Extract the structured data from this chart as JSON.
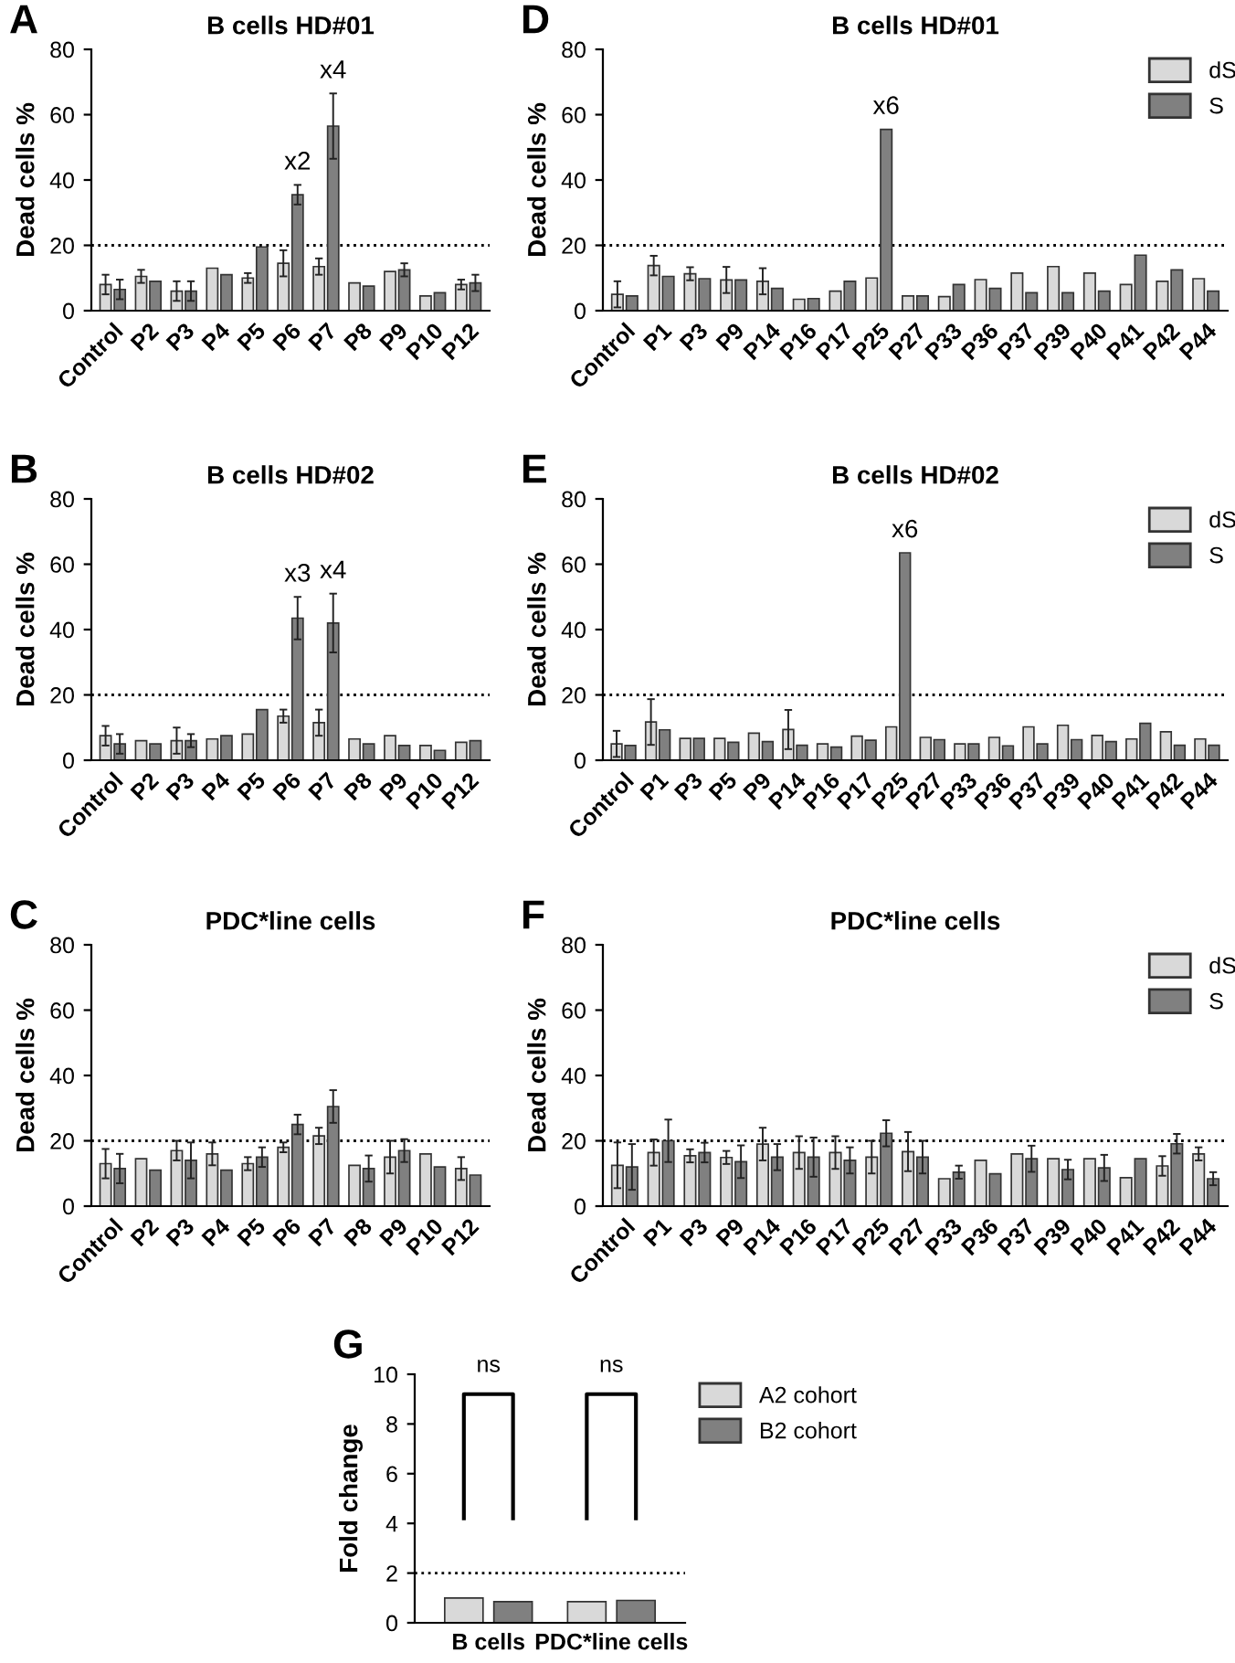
{
  "chart_data": [
    {
      "type": "bar",
      "title": "B cells HD#01",
      "ylabel": "Dead cells %",
      "annotations": [
        "A",
        {
          "text": "x2",
          "x": "P6",
          "y": 35.5
        },
        {
          "text": "x4",
          "x": "P7",
          "y": 56.5
        }
      ],
      "categories": [
        "Control",
        "P2",
        "P3",
        "P4",
        "P5",
        "P6",
        "P7",
        "P8",
        "P9",
        "P10",
        "P12"
      ],
      "series": [
        {
          "color": "#d9d9d9",
          "values": [
            8,
            10.5,
            6,
            13,
            10,
            14.5,
            13.5,
            8.5,
            12,
            4.5,
            8
          ],
          "errors": [
            3,
            2,
            3,
            null,
            1.5,
            4,
            2.5,
            null,
            null,
            null,
            1.5
          ]
        },
        {
          "color": "#808080",
          "values": [
            6.5,
            9,
            6,
            11,
            19.5,
            35.5,
            56.5,
            7.5,
            12.5,
            5.5,
            8.5
          ],
          "errors": [
            3,
            null,
            3,
            null,
            null,
            3,
            10,
            null,
            2,
            null,
            2.5
          ]
        }
      ],
      "ylim": [
        0,
        80
      ],
      "yticks": [
        0,
        20,
        40,
        60,
        80
      ],
      "ref_lines": [
        {
          "axis": "y",
          "value": 20,
          "line_style": "dotted",
          "color": "#000000"
        }
      ],
      "grid": false,
      "legend": false
    },
    {
      "type": "bar",
      "title": "B cells HD#02",
      "ylabel": "Dead cells %",
      "annotations": [
        "B",
        {
          "text": "x3",
          "x": "P6",
          "y": 43.5
        },
        {
          "text": "x4",
          "x": "P7",
          "y": 42
        }
      ],
      "categories": [
        "Control",
        "P2",
        "P3",
        "P4",
        "P5",
        "P6",
        "P7",
        "P8",
        "P9",
        "P10",
        "P12"
      ],
      "series": [
        {
          "color": "#d9d9d9",
          "values": [
            7.5,
            6,
            6,
            6.5,
            8,
            13.5,
            11.5,
            6.5,
            7.5,
            4.5,
            5.5
          ],
          "errors": [
            3,
            null,
            4,
            null,
            null,
            2,
            4,
            null,
            null,
            null,
            null
          ]
        },
        {
          "color": "#808080",
          "values": [
            5,
            5,
            6,
            7.5,
            15.5,
            43.5,
            42,
            5,
            4.5,
            3,
            6
          ],
          "errors": [
            3,
            null,
            2,
            null,
            null,
            6.5,
            9,
            null,
            null,
            null,
            null
          ]
        }
      ],
      "ylim": [
        0,
        80
      ],
      "yticks": [
        0,
        20,
        40,
        60,
        80
      ],
      "ref_lines": [
        {
          "axis": "y",
          "value": 20,
          "line_style": "dotted",
          "color": "#000000"
        }
      ],
      "grid": false,
      "legend": false
    },
    {
      "type": "bar",
      "title": "PDC*line cells",
      "ylabel": "Dead cells %",
      "annotations": [
        "C"
      ],
      "categories": [
        "Control",
        "P2",
        "P3",
        "P4",
        "P5",
        "P6",
        "P7",
        "P8",
        "P9",
        "P10",
        "P12"
      ],
      "series": [
        {
          "color": "#d9d9d9",
          "values": [
            13,
            14.5,
            17,
            16,
            13,
            18,
            21.5,
            12.5,
            15,
            16,
            11.5
          ],
          "errors": [
            4.5,
            null,
            3,
            3.5,
            2,
            1.5,
            2.5,
            null,
            5,
            null,
            3.5
          ]
        },
        {
          "color": "#808080",
          "values": [
            11.5,
            11,
            14,
            11,
            15,
            25,
            30.5,
            11.5,
            17,
            12,
            9.5
          ],
          "errors": [
            4.5,
            null,
            5.5,
            null,
            3,
            3,
            5,
            4,
            3.5,
            null,
            null
          ]
        }
      ],
      "ylim": [
        0,
        80
      ],
      "yticks": [
        0,
        20,
        40,
        60,
        80
      ],
      "ref_lines": [
        {
          "axis": "y",
          "value": 20,
          "line_style": "dotted",
          "color": "#000000"
        }
      ],
      "grid": false,
      "legend": false
    },
    {
      "type": "bar",
      "title": "B cells HD#01",
      "ylabel": "Dead cells %",
      "annotations": [
        "D",
        {
          "text": "x6",
          "x": "P25",
          "y": 55.5
        }
      ],
      "categories": [
        "Control",
        "P1",
        "P3",
        "P9",
        "P14",
        "P16",
        "P17",
        "P25",
        "P27",
        "P33",
        "P36",
        "P37",
        "P39",
        "P40",
        "P41",
        "P42",
        "P44"
      ],
      "series": [
        {
          "name": "dS",
          "color": "#d9d9d9",
          "values": [
            5,
            13.8,
            11.3,
            9.4,
            9,
            3.5,
            6,
            10,
            4.5,
            4.3,
            9.5,
            11.5,
            13.5,
            11.5,
            8,
            9,
            9.8
          ],
          "errors": [
            4,
            3,
            2,
            4,
            4,
            null,
            null,
            null,
            null,
            null,
            null,
            null,
            null,
            null,
            null,
            null,
            null
          ]
        },
        {
          "name": "S",
          "color": "#808080",
          "values": [
            4.5,
            10.5,
            9.8,
            9.4,
            6.8,
            3.7,
            9,
            55.5,
            4.5,
            8,
            6.8,
            5.5,
            5.5,
            6,
            17,
            12.5,
            6
          ]
        }
      ],
      "ylim": [
        0,
        80
      ],
      "yticks": [
        0,
        20,
        40,
        60,
        80
      ],
      "ref_lines": [
        {
          "axis": "y",
          "value": 20,
          "line_style": "dotted",
          "color": "#000000"
        }
      ],
      "grid": false,
      "legend": "top right"
    },
    {
      "type": "bar",
      "title": "B cells HD#02",
      "ylabel": "Dead cells %",
      "annotations": [
        "E",
        {
          "text": "x6",
          "x": "P25",
          "y": 63.5
        }
      ],
      "categories": [
        "Control",
        "P1",
        "P3",
        "P5",
        "P9",
        "P14",
        "P16",
        "P17",
        "P25",
        "P27",
        "P33",
        "P36",
        "P37",
        "P39",
        "P40",
        "P41",
        "P42",
        "P44"
      ],
      "series": [
        {
          "name": "dS",
          "color": "#d9d9d9",
          "values": [
            5,
            11.7,
            6.7,
            6.7,
            8.3,
            9.4,
            5,
            7.4,
            10.2,
            7,
            5,
            7,
            10.2,
            10.7,
            7.6,
            6.5,
            8.7,
            6.5
          ],
          "errors": [
            4,
            7,
            null,
            null,
            null,
            6,
            null,
            null,
            null,
            null,
            null,
            null,
            null,
            null,
            null,
            null,
            null,
            null
          ]
        },
        {
          "name": "S",
          "color": "#808080",
          "values": [
            4.5,
            9.3,
            6.7,
            5.5,
            5.7,
            4.6,
            4,
            6.1,
            63.5,
            6.3,
            5,
            4.4,
            5,
            6.3,
            5.7,
            11.3,
            4.6,
            4.6
          ]
        }
      ],
      "ylim": [
        0,
        80
      ],
      "yticks": [
        0,
        20,
        40,
        60,
        80
      ],
      "ref_lines": [
        {
          "axis": "y",
          "value": 20,
          "line_style": "dotted",
          "color": "#000000"
        }
      ],
      "grid": false,
      "legend": "top right"
    },
    {
      "type": "bar",
      "title": "PDC*line cells",
      "ylabel": "Dead cells %",
      "annotations": [
        "F"
      ],
      "categories": [
        "Control",
        "P1",
        "P3",
        "P9",
        "P14",
        "P16",
        "P17",
        "P25",
        "P27",
        "P33",
        "P36",
        "P37",
        "P39",
        "P40",
        "P41",
        "P42",
        "P44"
      ],
      "series": [
        {
          "name": "dS",
          "color": "#d9d9d9",
          "values": [
            12.5,
            16.4,
            15.4,
            14.9,
            19,
            16.4,
            16.4,
            15,
            16.7,
            8.4,
            14,
            16,
            14.5,
            14.5,
            8.7,
            12.3,
            16
          ],
          "errors": [
            7,
            4,
            2,
            2,
            5,
            5,
            5,
            5,
            6,
            null,
            null,
            null,
            null,
            null,
            null,
            3,
            2
          ]
        },
        {
          "name": "S",
          "color": "#808080",
          "values": [
            12,
            20,
            16.4,
            13.6,
            15,
            15,
            14,
            22.3,
            15,
            10.4,
            9.9,
            14.5,
            11.2,
            11.7,
            14.5,
            19.1,
            8.4
          ],
          "errors": [
            7,
            6.5,
            3,
            5,
            4,
            6,
            4,
            4,
            5,
            2,
            null,
            4,
            3,
            4,
            null,
            3,
            2
          ]
        }
      ],
      "ylim": [
        0,
        80
      ],
      "yticks": [
        0,
        20,
        40,
        60,
        80
      ],
      "ref_lines": [
        {
          "axis": "y",
          "value": 20,
          "line_style": "dotted",
          "color": "#000000"
        }
      ],
      "grid": false,
      "legend": "top right"
    },
    {
      "type": "bar",
      "ylabel": "Fold change",
      "annotations": [
        "G",
        "ns",
        "ns"
      ],
      "categories": [
        "B cells",
        "PDC*line cells"
      ],
      "series": [
        {
          "name": "A2 cohort",
          "color": "#d9d9d9",
          "values": [
            1.0,
            0.85
          ]
        },
        {
          "name": "B2 cohort",
          "color": "#808080",
          "values": [
            0.85,
            0.9
          ]
        }
      ],
      "ylim": [
        0,
        10
      ],
      "yticks": [
        0,
        2,
        4,
        6,
        8,
        10
      ],
      "ref_lines": [
        {
          "axis": "y",
          "value": 2,
          "line_style": "dotted",
          "color": "#000000"
        }
      ],
      "grid": false,
      "legend": "right"
    }
  ]
}
